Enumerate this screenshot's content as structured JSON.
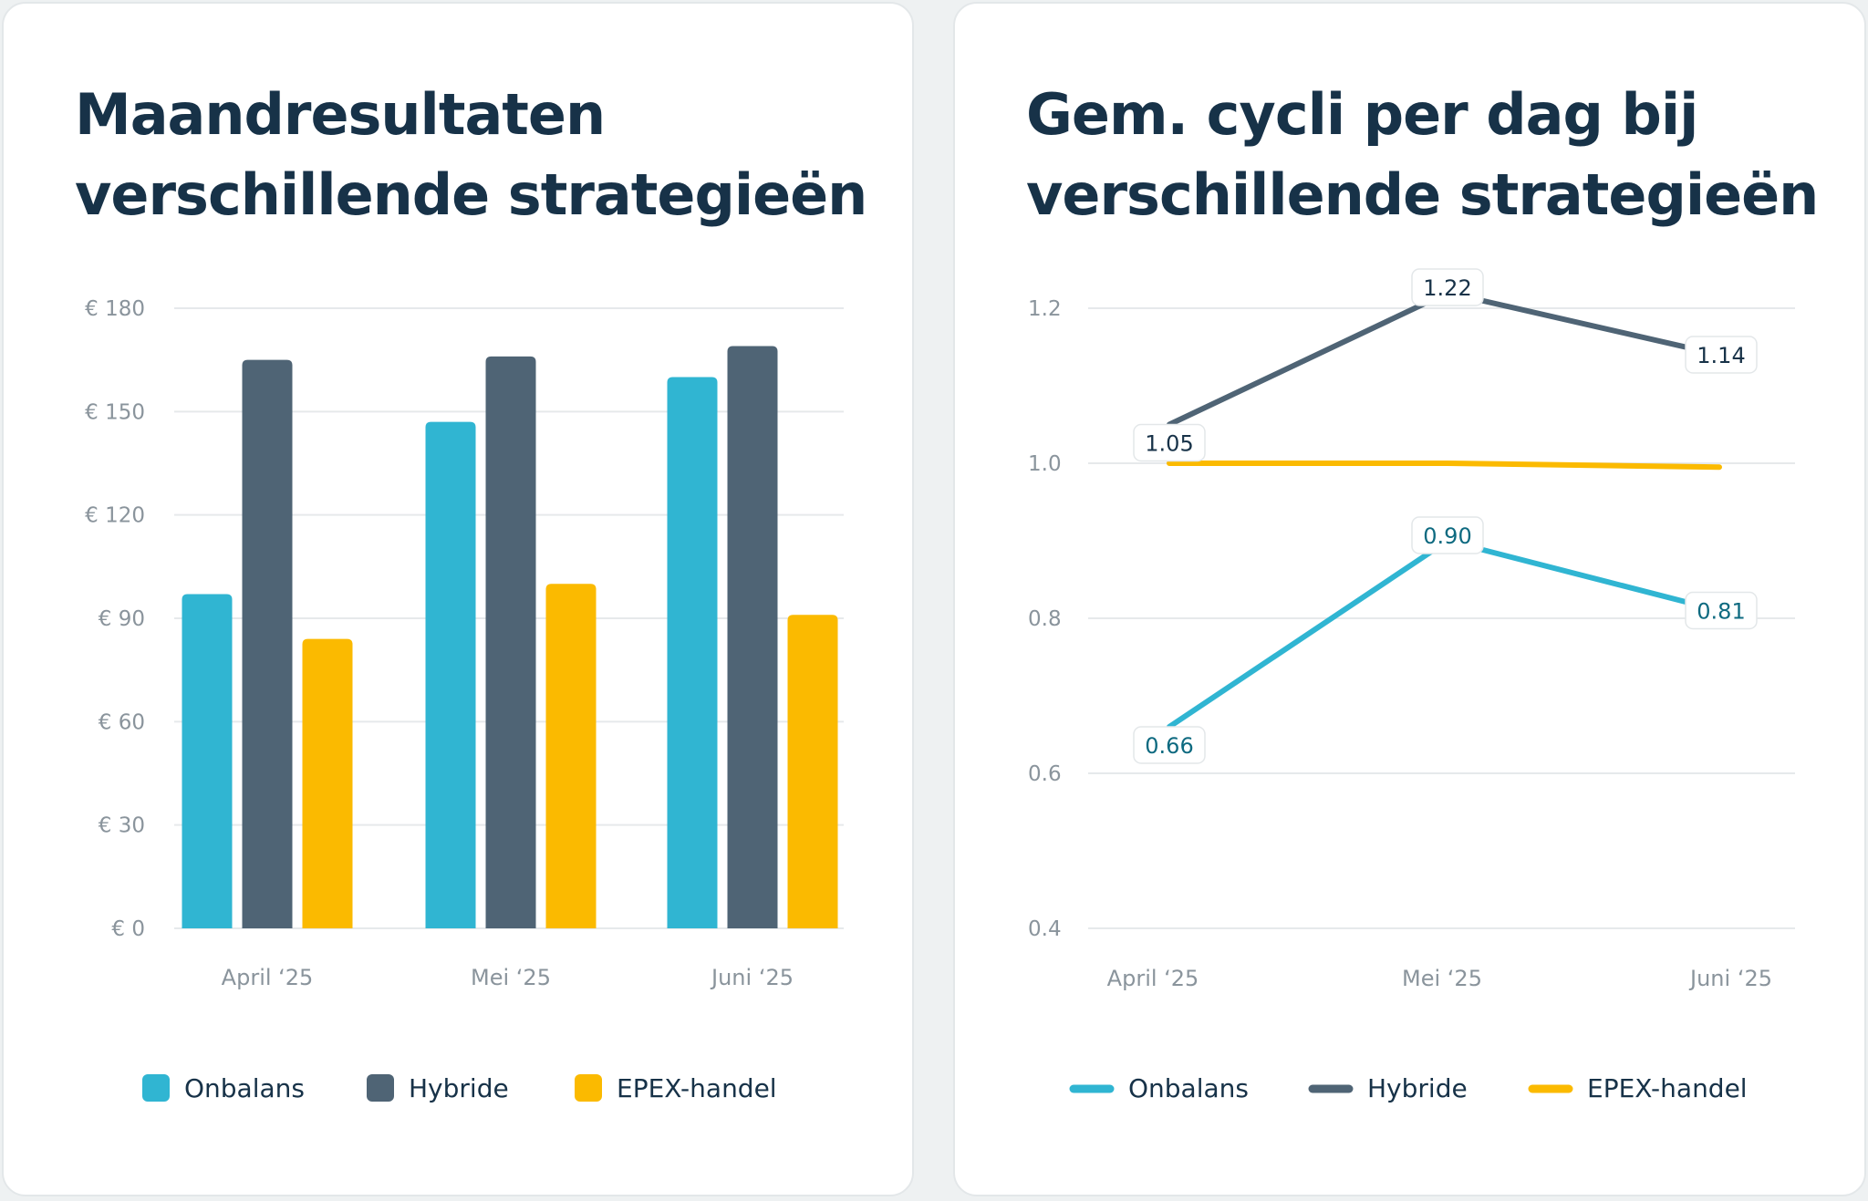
{
  "colors": {
    "onbalans": "#30b5d2",
    "hybride": "#4f6475",
    "epex": "#fbba00",
    "title": "#173248",
    "grid": "#e6e9eb",
    "label_onbalans": "#0e6a80",
    "label_hybride": "#173248"
  },
  "chart_data": [
    {
      "type": "bar",
      "title": "Maandresultaten verschillende strategieën",
      "title_lines": [
        "Maandresultaten",
        "verschillende strategieën"
      ],
      "categories": [
        "April ‘25",
        "Mei ‘25",
        "Juni ‘25"
      ],
      "yticks": [
        "€ 0",
        "€ 30",
        "€ 60",
        "€ 90",
        "€ 120",
        "€ 150",
        "€ 180"
      ],
      "ylim": [
        0,
        180
      ],
      "grid": true,
      "legend": "bottom",
      "series": [
        {
          "name": "Onbalans",
          "values": [
            97,
            147,
            160
          ]
        },
        {
          "name": "Hybride",
          "values": [
            165,
            166,
            169
          ]
        },
        {
          "name": "EPEX-handel",
          "values": [
            84,
            100,
            91
          ]
        }
      ]
    },
    {
      "type": "line",
      "title": "Gem. cycli per dag bij verschillende strategieën",
      "title_lines": [
        "Gem. cycli per dag bij",
        "verschillende strategieën"
      ],
      "categories": [
        "April ‘25",
        "Mei ‘25",
        "Juni ‘25"
      ],
      "yticks": [
        "0.4",
        "0.6",
        "0.8",
        "1.0",
        "1.2"
      ],
      "ylim": [
        0.4,
        1.2
      ],
      "grid": true,
      "legend": "bottom",
      "series": [
        {
          "name": "Onbalans",
          "values": [
            0.66,
            0.9,
            0.81
          ],
          "labels": [
            "0.66",
            "0.90",
            "0.81"
          ]
        },
        {
          "name": "Hybride",
          "values": [
            1.05,
            1.22,
            1.14
          ],
          "labels": [
            "1.05",
            "1.22",
            "1.14"
          ]
        },
        {
          "name": "EPEX-handel",
          "values": [
            1.0,
            1.0,
            0.995
          ]
        }
      ]
    }
  ]
}
